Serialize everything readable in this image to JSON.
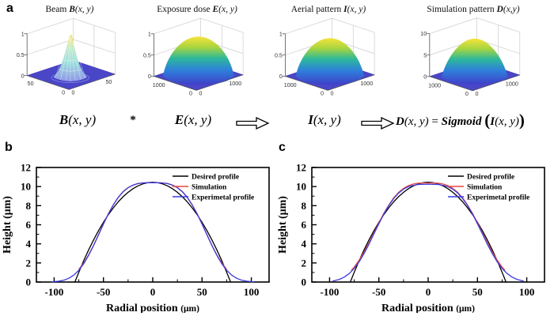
{
  "figure": {
    "panel_a": {
      "label": "a",
      "plots": [
        {
          "title_prefix": "Beam ",
          "title_symbol": "B",
          "title_args": "(x, y)",
          "z_ticks": [
            "1",
            "0.5",
            "0"
          ],
          "left_max": "50",
          "origin_a": "0",
          "origin_b": "0",
          "right_max": "50",
          "kind": "spike"
        },
        {
          "title_prefix": "Exposure dose ",
          "title_symbol": "E",
          "title_args": "(x, y)",
          "z_ticks": [
            "1",
            "0.5",
            "0"
          ],
          "left_max": "1000",
          "origin_a": "0",
          "origin_b": "0",
          "right_max": "1000",
          "kind": "dome"
        },
        {
          "title_prefix": "Aerial pattern ",
          "title_symbol": "I",
          "title_args": "(x, y)",
          "z_ticks": [
            "1",
            "0.5",
            "0"
          ],
          "left_max": "1000",
          "origin_a": "0",
          "origin_b": "0",
          "right_max": "1000",
          "kind": "dome"
        },
        {
          "title_prefix": "Simulation pattern ",
          "title_symbol": "D",
          "title_args": "(x,y)",
          "z_ticks": [
            "10",
            "5",
            "0"
          ],
          "left_max": "1000",
          "origin_a": "0",
          "origin_b": "0",
          "right_max": "1000",
          "kind": "dome"
        }
      ],
      "equation": {
        "term1_sym": "B",
        "term1_args": "(x, y)",
        "operator": "*",
        "term2_sym": "E",
        "term2_args": "(x, y)",
        "term3_sym": "I",
        "term3_args": "(x, y)",
        "result_sym": "D",
        "result_args": "(x, y)",
        "equals": " = ",
        "function": "Sigmoid",
        "inner_open": "(",
        "inner_sym": "I",
        "inner_args": "(x, y)",
        "inner_close": ")"
      }
    },
    "panel_b": {
      "label": "b"
    },
    "panel_c": {
      "label": "c"
    },
    "colors": {
      "desired": "#000000",
      "simulation": "#e8453f",
      "experimental": "#3b3be0",
      "surface_base": "#4444cb",
      "dome_top": "#f6e33b",
      "dome_mid": "#2db89b",
      "dome_bottom": "#3f3fc8"
    }
  },
  "chart_data": [
    {
      "type": "surface",
      "panel": "a1",
      "title": "Beam B(x, y)",
      "zlim": [
        0,
        1
      ],
      "z_ticks": [
        0,
        0.5,
        1
      ],
      "xy_range": [
        0,
        50
      ],
      "description": "narrow Gaussian beam spike, peak 1 at center of 50x50 domain"
    },
    {
      "type": "surface",
      "panel": "a2",
      "title": "Exposure dose E(x, y)",
      "zlim": [
        0,
        1
      ],
      "z_ticks": [
        0,
        0.5,
        1
      ],
      "xy_range": [
        0,
        1000
      ],
      "description": "smooth dome, peak 1 at center of 1000x1000 domain"
    },
    {
      "type": "surface",
      "panel": "a3",
      "title": "Aerial pattern I(x, y)",
      "zlim": [
        0,
        1
      ],
      "z_ticks": [
        0,
        0.5,
        1
      ],
      "xy_range": [
        0,
        1000
      ],
      "description": "smooth dome, peak 1 at center of 1000x1000 domain"
    },
    {
      "type": "surface",
      "panel": "a4",
      "title": "Simulation pattern D(x,y)",
      "zlim": [
        0,
        10
      ],
      "z_ticks": [
        0,
        5,
        10
      ],
      "xy_range": [
        0,
        1000
      ],
      "description": "sigmoid-shaped dome, peak 10 at center of 1000x1000 domain"
    },
    {
      "type": "line",
      "id": "b",
      "xlabel_main": "Radial position ",
      "xlabel_unit": "(μm)",
      "ylabel": "Height (μm)",
      "xlim": [
        -118,
        118
      ],
      "ylim": [
        0,
        12
      ],
      "x_ticks": [
        -100,
        -50,
        0,
        50,
        100
      ],
      "y_ticks": [
        0,
        2,
        4,
        6,
        8,
        10,
        12
      ],
      "x_minor": {
        "step": 25,
        "min": -100,
        "max": 100
      },
      "y_minor": {
        "step": 1,
        "min": 0,
        "max": 12
      },
      "legend_position": "top-right",
      "grid": false,
      "series": [
        {
          "name": "Desired profile",
          "color": "#000000",
          "x": [
            -79,
            -75,
            -70,
            -65,
            -60,
            -55,
            -50,
            -45,
            -40,
            -35,
            -30,
            -25,
            -20,
            -15,
            -10,
            -5,
            0,
            5,
            10,
            15,
            20,
            25,
            30,
            35,
            40,
            45,
            50,
            55,
            60,
            65,
            70,
            75,
            79
          ],
          "y": [
            0,
            1.03,
            2.24,
            3.37,
            4.42,
            5.39,
            6.26,
            7.06,
            7.77,
            8.4,
            8.94,
            9.4,
            9.78,
            10.07,
            10.28,
            10.41,
            10.45,
            10.41,
            10.28,
            10.07,
            9.78,
            9.4,
            8.94,
            8.4,
            7.77,
            7.06,
            6.26,
            5.39,
            4.42,
            3.37,
            2.24,
            1.03,
            0
          ]
        },
        {
          "name": "Simulation",
          "color": "#e8453f",
          "x": [
            -75,
            -70,
            -65,
            -60,
            -55,
            -50,
            -45,
            -40,
            -35,
            -30,
            -25,
            -20,
            -15,
            -10,
            -5,
            0,
            5,
            10,
            15,
            20,
            25,
            30,
            35,
            40,
            45,
            50,
            55,
            60,
            65,
            70,
            75
          ],
          "y": [
            1.33,
            2.0,
            2.85,
            3.86,
            4.97,
            6.09,
            7.15,
            8.1,
            8.88,
            9.48,
            9.9,
            10.16,
            10.32,
            10.39,
            10.42,
            10.42,
            10.42,
            10.39,
            10.32,
            10.16,
            9.9,
            9.48,
            8.88,
            8.1,
            7.15,
            6.09,
            4.97,
            3.86,
            2.85,
            2.0,
            1.33
          ]
        },
        {
          "name": "Experimetal profile",
          "color": "#3b3be0",
          "x": [
            -103,
            -100,
            -95,
            -90,
            -85,
            -80,
            -75,
            -70,
            -65,
            -60,
            -55,
            -50,
            -45,
            -40,
            -35,
            -30,
            -25,
            -20,
            -15,
            -10,
            -5,
            0,
            5,
            10,
            15,
            20,
            25,
            30,
            35,
            40,
            45,
            50,
            55,
            60,
            65,
            70,
            75,
            80,
            85,
            90,
            95,
            100,
            103
          ],
          "y": [
            0.02,
            0.04,
            0.09,
            0.2,
            0.4,
            0.73,
            1.23,
            1.92,
            2.8,
            3.83,
            4.94,
            6.07,
            7.13,
            8.08,
            8.86,
            9.46,
            9.88,
            10.15,
            10.31,
            10.38,
            10.4,
            10.4,
            10.4,
            10.38,
            10.31,
            10.15,
            9.88,
            9.46,
            8.86,
            8.08,
            7.13,
            6.07,
            4.94,
            3.83,
            2.8,
            1.92,
            1.23,
            0.73,
            0.4,
            0.2,
            0.09,
            0.04,
            0.02
          ]
        }
      ]
    },
    {
      "type": "line",
      "id": "c",
      "xlabel_main": "Radial position ",
      "xlabel_unit": "(μm)",
      "ylabel": "Height (μm)",
      "xlim": [
        -118,
        118
      ],
      "ylim": [
        0,
        12
      ],
      "x_ticks": [
        -100,
        -50,
        0,
        50,
        100
      ],
      "y_ticks": [
        0,
        2,
        4,
        6,
        8,
        10,
        12
      ],
      "x_minor": {
        "step": 25,
        "min": -100,
        "max": 100
      },
      "y_minor": {
        "step": 1,
        "min": 0,
        "max": 12
      },
      "legend_position": "top-right",
      "grid": false,
      "series": [
        {
          "name": "Desired profile",
          "color": "#000000",
          "x": [
            -79,
            -75,
            -70,
            -65,
            -60,
            -55,
            -50,
            -45,
            -40,
            -35,
            -30,
            -25,
            -20,
            -15,
            -10,
            -5,
            0,
            5,
            10,
            15,
            20,
            25,
            30,
            35,
            40,
            45,
            50,
            55,
            60,
            65,
            70,
            75,
            79
          ],
          "y": [
            0,
            1.03,
            2.24,
            3.37,
            4.42,
            5.39,
            6.26,
            7.06,
            7.77,
            8.4,
            8.94,
            9.4,
            9.78,
            10.07,
            10.28,
            10.41,
            10.45,
            10.41,
            10.28,
            10.07,
            9.78,
            9.4,
            8.94,
            8.4,
            7.77,
            7.06,
            6.26,
            5.39,
            4.42,
            3.37,
            2.24,
            1.03,
            0
          ]
        },
        {
          "name": "Simulation",
          "color": "#e8453f",
          "x": [
            -78,
            -75,
            -70,
            -65,
            -60,
            -55,
            -50,
            -45,
            -40,
            -35,
            -30,
            -25,
            -20,
            -15,
            -10,
            -5,
            0,
            5,
            10,
            15,
            20,
            25,
            30,
            35,
            40,
            45,
            50,
            55,
            60,
            65,
            70,
            75,
            78
          ],
          "y": [
            1.22,
            1.57,
            2.29,
            3.15,
            4.12,
            5.16,
            6.2,
            7.18,
            8.06,
            8.81,
            9.39,
            9.81,
            10.1,
            10.27,
            10.35,
            10.38,
            10.38,
            10.38,
            10.35,
            10.27,
            10.1,
            9.81,
            9.39,
            8.81,
            8.06,
            7.18,
            6.2,
            5.16,
            4.12,
            3.15,
            2.29,
            1.57,
            1.22
          ]
        },
        {
          "name": "Experimetal profile",
          "color": "#3b3be0",
          "x": [
            -97,
            -95,
            -90,
            -85,
            -80,
            -75,
            -70,
            -65,
            -60,
            -55,
            -50,
            -45,
            -40,
            -35,
            -30,
            -25,
            -20,
            -15,
            -10,
            -5,
            0,
            5,
            10,
            15,
            20,
            25,
            30,
            35,
            40,
            45,
            50,
            55,
            60,
            65,
            70,
            75,
            80,
            85,
            90,
            95,
            97
          ],
          "y": [
            0.1,
            0.14,
            0.28,
            0.52,
            0.89,
            1.42,
            2.12,
            2.99,
            3.98,
            5.05,
            6.1,
            7.12,
            8.0,
            8.73,
            9.31,
            9.73,
            10.0,
            10.13,
            10.22,
            10.24,
            10.25,
            10.24,
            10.22,
            10.13,
            10.0,
            9.73,
            9.31,
            8.73,
            8.0,
            7.12,
            6.1,
            5.05,
            3.98,
            2.99,
            2.12,
            1.42,
            0.89,
            0.52,
            0.28,
            0.14,
            0.1
          ]
        }
      ]
    }
  ]
}
